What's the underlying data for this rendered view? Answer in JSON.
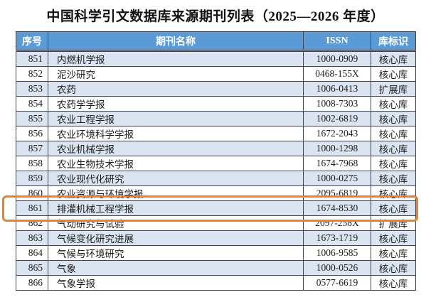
{
  "title": "中国科学引文数据库来源期刊列表（2025—2026 年度）",
  "table": {
    "headers": {
      "no": "序号",
      "name": "期刊名称",
      "issn": "ISSN",
      "db": "库标识"
    },
    "rows": [
      {
        "no": "851",
        "name": "内燃机学报",
        "issn": "1000-0909",
        "db": "核心库"
      },
      {
        "no": "852",
        "name": "泥沙研究",
        "issn": "0468-155X",
        "db": "核心库"
      },
      {
        "no": "853",
        "name": "农药",
        "issn": "1006-0413",
        "db": "扩展库"
      },
      {
        "no": "854",
        "name": "农药学学报",
        "issn": "1008-7303",
        "db": "核心库"
      },
      {
        "no": "855",
        "name": "农业工程学报",
        "issn": "1002-6819",
        "db": "核心库"
      },
      {
        "no": "856",
        "name": "农业环境科学学报",
        "issn": "1672-2043",
        "db": "核心库"
      },
      {
        "no": "857",
        "name": "农业机械学报",
        "issn": "1000-1298",
        "db": "核心库"
      },
      {
        "no": "858",
        "name": "农业生物技术学报",
        "issn": "1674-7968",
        "db": "核心库"
      },
      {
        "no": "859",
        "name": "农业现代化研究",
        "issn": "1000-0275",
        "db": "核心库"
      },
      {
        "no": "860",
        "name": "农业资源与环境学报",
        "issn": "2095-6819",
        "db": "核心库"
      },
      {
        "no": "861",
        "name": "排灌机械工程学报",
        "issn": "1674-8530",
        "db": "核心库"
      },
      {
        "no": "862",
        "name": "气动研究与试验",
        "issn": "2097-258X",
        "db": "扩展库"
      },
      {
        "no": "863",
        "name": "气候变化研究进展",
        "issn": "1673-1719",
        "db": "核心库"
      },
      {
        "no": "864",
        "name": "气候与环境研究",
        "issn": "1006-9585",
        "db": "核心库"
      },
      {
        "no": "865",
        "name": "气象",
        "issn": "1000-0526",
        "db": "核心库"
      },
      {
        "no": "866",
        "name": "气象学报",
        "issn": "0577-6619",
        "db": "核心库"
      }
    ]
  },
  "highlight": {
    "row_no": "861",
    "color": "#e8802d"
  },
  "colors": {
    "header_bg": "#5b9bd5",
    "header_text": "#ffffff",
    "alt_row_bg": "#dbe5f1",
    "border": "#3f4450"
  }
}
